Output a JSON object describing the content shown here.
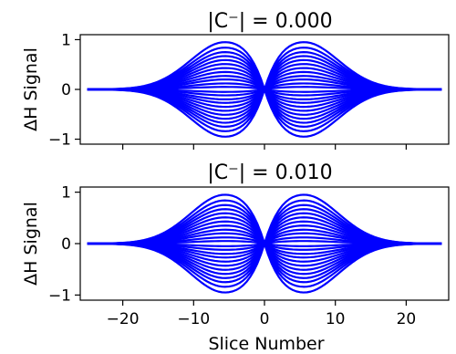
{
  "chart_data": [
    {
      "type": "line",
      "title": "|C⁻| = 0.000",
      "xlabel": "",
      "ylabel": "ΔH Signal",
      "xlim": [
        -26,
        26
      ],
      "ylim": [
        -1.1,
        1.1
      ],
      "xticks": [
        -20,
        -10,
        0,
        10,
        20
      ],
      "yticks": [
        1,
        0,
        -1
      ],
      "ytick_labels": [
        "1",
        "0",
        "−1"
      ],
      "xtick_labels": [],
      "color": "#0000ff",
      "curve_shape": "peaks near slice ±5.5, zero at slice 0 and beyond ±25",
      "series_amplitudes": [
        -0.95,
        -0.84,
        -0.75,
        -0.67,
        -0.59,
        -0.51,
        -0.43,
        -0.35,
        -0.27,
        -0.2,
        -0.12,
        -0.05,
        0.05,
        0.12,
        0.2,
        0.27,
        0.35,
        0.43,
        0.51,
        0.59,
        0.67,
        0.75,
        0.84,
        0.95
      ],
      "x": [
        -25,
        -20,
        -15,
        -10,
        -5.5,
        -3,
        0,
        3,
        5.5,
        10,
        15,
        20,
        25
      ]
    },
    {
      "type": "line",
      "title": "|C⁻| = 0.010",
      "xlabel": "Slice Number",
      "ylabel": "ΔH Signal",
      "xlim": [
        -26,
        26
      ],
      "ylim": [
        -1.1,
        1.1
      ],
      "xticks": [
        -20,
        -10,
        0,
        10,
        20
      ],
      "yticks": [
        1,
        0,
        -1
      ],
      "ytick_labels": [
        "1",
        "0",
        "−1"
      ],
      "xtick_labels": [
        "−20",
        "−10",
        "0",
        "10",
        "20"
      ],
      "color": "#0000ff",
      "curve_shape": "peaks near slice ±5.5, zero at slice 0 and beyond ±25",
      "series_amplitudes": [
        -0.95,
        -0.84,
        -0.75,
        -0.67,
        -0.59,
        -0.51,
        -0.43,
        -0.35,
        -0.27,
        -0.2,
        -0.12,
        -0.05,
        0.05,
        0.12,
        0.2,
        0.27,
        0.35,
        0.43,
        0.51,
        0.59,
        0.67,
        0.75,
        0.84,
        0.95
      ],
      "x": [
        -25,
        -20,
        -15,
        -10,
        -5.5,
        -3,
        0,
        3,
        5.5,
        10,
        15,
        20,
        25
      ]
    }
  ]
}
